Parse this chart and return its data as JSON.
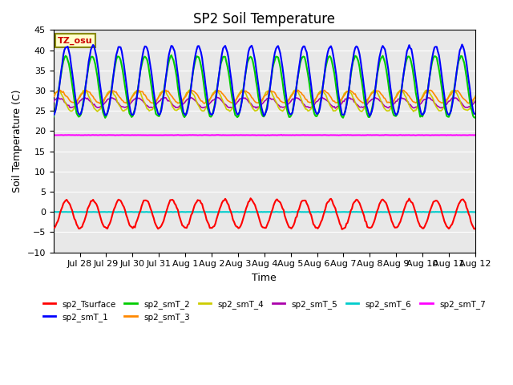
{
  "title": "SP2 Soil Temperature",
  "ylabel": "Soil Temperature (C)",
  "xlabel": "Time",
  "n_days": 16,
  "ylim": [
    -10,
    45
  ],
  "yticks": [
    -10,
    -5,
    0,
    5,
    10,
    15,
    20,
    25,
    30,
    35,
    40,
    45
  ],
  "x_tick_labels": [
    "Jul 28",
    "Jul 29",
    "Jul 30",
    "Jul 31",
    "Aug 1",
    "Aug 2",
    "Aug 3",
    "Aug 4",
    "Aug 5",
    "Aug 6",
    "Aug 7",
    "Aug 8",
    "Aug 9",
    "Aug 10",
    "Aug 11",
    "Aug 12"
  ],
  "bg_color": "#e8e8e8",
  "series_colors": {
    "sp2_Tsurface": "#ff0000",
    "sp2_smT_1": "#0000ff",
    "sp2_smT_2": "#00cc00",
    "sp2_smT_3": "#ff8800",
    "sp2_smT_4": "#cccc00",
    "sp2_smT_5": "#aa00aa",
    "sp2_smT_6": "#00cccc",
    "sp2_smT_7": "#ff00ff"
  },
  "tz_label": "TZ_osu",
  "tz_label_color": "#cc0000",
  "tz_box_color": "#ffffcc"
}
